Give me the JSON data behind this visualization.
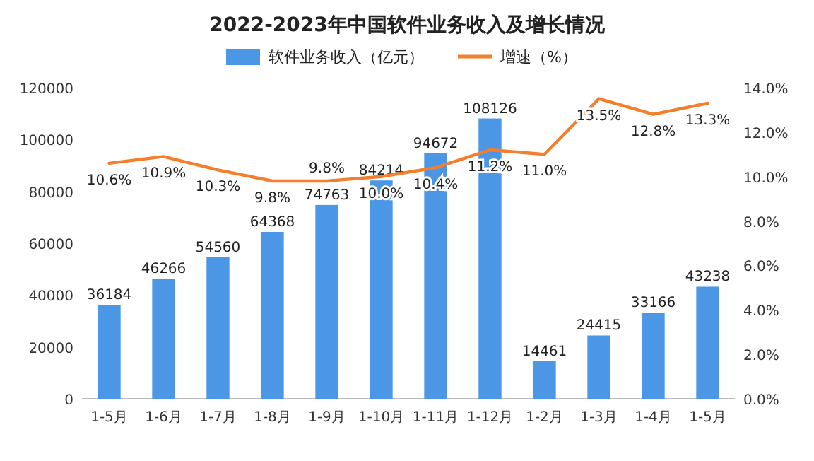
{
  "chart_data": {
    "type": "bar",
    "title": "2022-2023年中国软件业务收入及增长情况",
    "categories": [
      "1-5月",
      "1-6月",
      "1-7月",
      "1-8月",
      "1-9月",
      "1-10月",
      "1-11月",
      "1-12月",
      "1-2月",
      "1-3月",
      "1-4月",
      "1-5月"
    ],
    "series": [
      {
        "name": "软件业务收入（亿元）",
        "color": "#4b97e6",
        "values": [
          36184,
          46266,
          54560,
          64368,
          74763,
          84214,
          94672,
          108126,
          14461,
          24415,
          33166,
          43238
        ],
        "data_labels": true
      },
      {
        "name": "增速（%）",
        "type": "line",
        "axis": "y2",
        "color": "#f57e2c",
        "values": [
          10.6,
          10.9,
          10.3,
          9.8,
          9.8,
          10.0,
          10.4,
          11.2,
          11.0,
          13.5,
          12.8,
          13.3
        ],
        "value_labels": [
          "10.6%",
          "10.9%",
          "10.3%",
          "9.8%",
          "9.8%",
          "10.0%",
          "10.4%",
          "11.2%",
          "11.0%",
          "13.5%",
          "12.8%",
          "13.3%"
        ]
      }
    ],
    "ylim": [
      0,
      120000
    ],
    "yticks": [
      0,
      20000,
      40000,
      60000,
      80000,
      100000,
      120000
    ],
    "y2lim": [
      0,
      14
    ],
    "y2ticks": [
      {
        "value": 0,
        "label": "0.0%"
      },
      {
        "value": 2,
        "label": "2.0%"
      },
      {
        "value": 4,
        "label": "4.0%"
      },
      {
        "value": 6,
        "label": "6.0%"
      },
      {
        "value": 8,
        "label": "8.0%"
      },
      {
        "value": 10,
        "label": "10.0%"
      },
      {
        "value": 12,
        "label": "12.0%"
      },
      {
        "value": 14,
        "label": "14.0%"
      }
    ],
    "legend": "top",
    "marker": "none",
    "line_style": "solid"
  }
}
